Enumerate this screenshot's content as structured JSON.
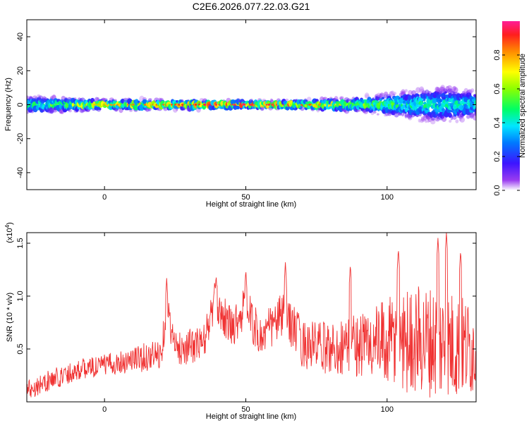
{
  "title": "C2E6.2026.077.22.03.G21",
  "chart_data": [
    {
      "type": "heatmap",
      "xlabel": "Height of straight line (km)",
      "ylabel": "Frequency (Hz)",
      "xlim": [
        -27.5,
        131.5
      ],
      "ylim": [
        -50,
        50
      ],
      "xticks": [
        0,
        50,
        100
      ],
      "yticks": [
        -40,
        -20,
        0,
        20,
        40
      ],
      "colorbar": {
        "label": "Normalized spectral amplitude",
        "range": [
          0.0,
          1.0
        ],
        "ticks": [
          0.0,
          0.2,
          0.4,
          0.6,
          0.8
        ],
        "colormap": "rainbow (purple to magenta)"
      },
      "band_center_hz": 0,
      "band_halfwidth_hz": [
        {
          "x": -25,
          "halfwidth": 5
        },
        {
          "x": 0,
          "halfwidth": 3
        },
        {
          "x": 60,
          "halfwidth": 2
        },
        {
          "x": 90,
          "halfwidth": 4
        },
        {
          "x": 100,
          "halfwidth": 7
        },
        {
          "x": 120,
          "halfwidth": 12
        },
        {
          "x": 131,
          "halfwidth": 9
        }
      ],
      "peak_amplitude": [
        {
          "x": -25,
          "value": 0.5
        },
        {
          "x": 0,
          "value": 0.8
        },
        {
          "x": 40,
          "value": 0.95
        },
        {
          "x": 65,
          "value": 0.95
        },
        {
          "x": 90,
          "value": 0.7
        },
        {
          "x": 100,
          "value": 0.55
        },
        {
          "x": 131,
          "value": 0.45
        }
      ]
    },
    {
      "type": "line",
      "xlabel": "Height of straight line (km)",
      "ylabel": "SNR (10 * v/v)",
      "y_multiplier_label": "(x10",
      "y_multiplier_exp": "4",
      "y_multiplier_close": ")",
      "xlim": [
        -27.5,
        131.5
      ],
      "ylim": [
        0,
        1.6
      ],
      "xticks": [
        0,
        50,
        100
      ],
      "yticks": [
        0.5,
        1.0,
        1.5
      ],
      "series": [
        {
          "color": "#f03232",
          "trend": [
            {
              "x": -27,
              "y": 0.12
            },
            {
              "x": -10,
              "y": 0.3
            },
            {
              "x": 0,
              "y": 0.35
            },
            {
              "x": 10,
              "y": 0.4
            },
            {
              "x": 20,
              "y": 0.45
            },
            {
              "x": 22,
              "y": 0.9
            },
            {
              "x": 25,
              "y": 0.5
            },
            {
              "x": 35,
              "y": 0.55
            },
            {
              "x": 39,
              "y": 0.95
            },
            {
              "x": 45,
              "y": 0.7
            },
            {
              "x": 50,
              "y": 0.9
            },
            {
              "x": 55,
              "y": 0.6
            },
            {
              "x": 64,
              "y": 0.85
            },
            {
              "x": 70,
              "y": 0.55
            },
            {
              "x": 80,
              "y": 0.5
            },
            {
              "x": 90,
              "y": 0.55
            },
            {
              "x": 100,
              "y": 0.55
            },
            {
              "x": 110,
              "y": 0.6
            },
            {
              "x": 120,
              "y": 0.55
            },
            {
              "x": 131,
              "y": 0.5
            }
          ],
          "amplitude": [
            {
              "x": -27,
              "a": 0.1
            },
            {
              "x": 0,
              "a": 0.1
            },
            {
              "x": 20,
              "a": 0.15
            },
            {
              "x": 50,
              "a": 0.2
            },
            {
              "x": 80,
              "a": 0.25
            },
            {
              "x": 95,
              "a": 0.35
            },
            {
              "x": 105,
              "a": 0.5
            },
            {
              "x": 120,
              "a": 0.55
            },
            {
              "x": 131,
              "a": 0.45
            }
          ],
          "peaks": [
            {
              "x": 22,
              "y": 1.17
            },
            {
              "x": 39.5,
              "y": 1.2
            },
            {
              "x": 50,
              "y": 1.25
            },
            {
              "x": 64,
              "y": 1.32
            },
            {
              "x": 87,
              "y": 1.3
            },
            {
              "x": 104,
              "y": 1.45
            },
            {
              "x": 118,
              "y": 1.55
            },
            {
              "x": 121,
              "y": 1.6
            },
            {
              "x": 126,
              "y": 1.43
            }
          ]
        }
      ]
    }
  ]
}
